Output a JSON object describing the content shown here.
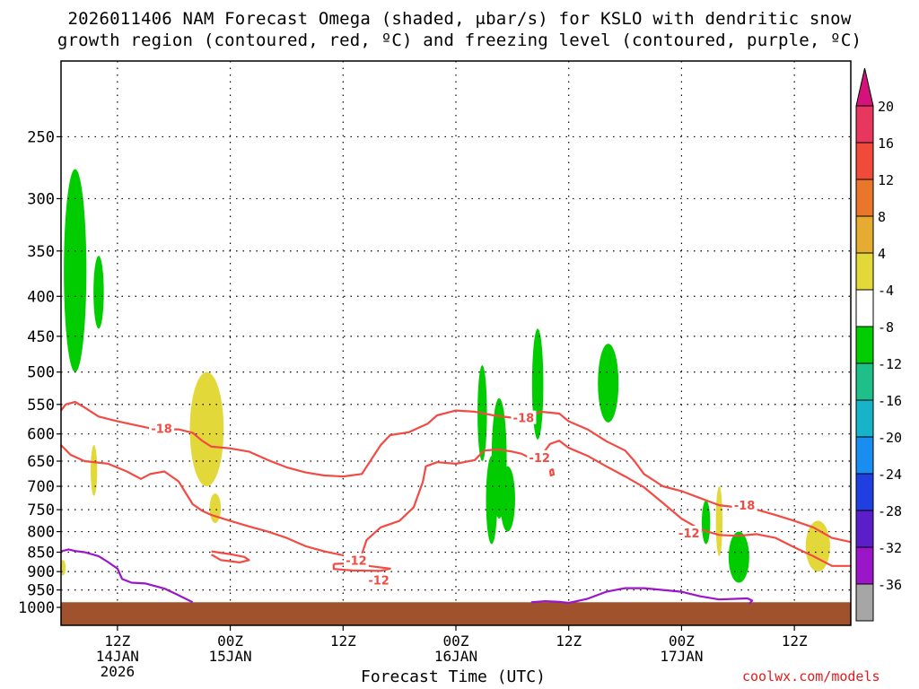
{
  "title_line1": "2026011406 NAM Forecast Omega (shaded, μbar/s) for KSLO with dendritic snow",
  "title_line2": "growth region (contoured, red, ºC) and freezing level (contoured, purple, ºC)",
  "credit": "coolwx.com/models",
  "colors": {
    "dgz_line": "#f24b43",
    "freezing_line": "#9b15c9",
    "terrain": "#a0522d",
    "omega_green": "#00cc00",
    "omega_yellow": "#e3d83a"
  },
  "chart_data": {
    "type": "heatmap",
    "title": "2026011406 NAM Forecast Omega (shaded, μbar/s) for KSLO with dendritic snow growth region (contoured, red, ºC) and freezing level (contoured, purple, ºC)",
    "xlabel": "Forecast Time (UTC)",
    "ylabel": "",
    "x_units": "hours since 2026011406",
    "xlim": [
      6,
      90
    ],
    "ylim_hpa": [
      1000,
      200
    ],
    "y_scale": "log-pressure",
    "grid": true,
    "y_ticks": [
      250,
      300,
      350,
      400,
      450,
      500,
      550,
      600,
      650,
      700,
      750,
      800,
      850,
      900,
      950,
      1000
    ],
    "x_ticks": [
      {
        "x": 12,
        "l1": "12Z",
        "l2": "14JAN",
        "l3": "2026"
      },
      {
        "x": 24,
        "l1": "00Z",
        "l2": "15JAN",
        "l3": ""
      },
      {
        "x": 36,
        "l1": "12Z",
        "l2": "",
        "l3": ""
      },
      {
        "x": 48,
        "l1": "00Z",
        "l2": "16JAN",
        "l3": ""
      },
      {
        "x": 60,
        "l1": "12Z",
        "l2": "",
        "l3": ""
      },
      {
        "x": 72,
        "l1": "00Z",
        "l2": "17JAN",
        "l3": ""
      },
      {
        "x": 84,
        "l1": "12Z",
        "l2": "",
        "l3": ""
      }
    ],
    "colorbar": {
      "levels": [
        "20",
        "16",
        "12",
        "8",
        "4",
        "-4",
        "-8",
        "-12",
        "-16",
        "-20",
        "-24",
        "-28",
        "-32",
        "-36"
      ],
      "colors": [
        "#e8375e",
        "#f04a3a",
        "#e9762a",
        "#e6ac32",
        "#e3d83a",
        "#ffffff",
        "#00cc00",
        "#1fbf8a",
        "#17b4c9",
        "#1a8df0",
        "#1f3fe0",
        "#5a1fc8",
        "#9b15c9",
        "#a6a6a6"
      ],
      "top_arrow": "#d4137a",
      "bottom_arrow": "#000000"
    },
    "contours": [
      {
        "name": "-18",
        "color": "#f24b43",
        "label_at": [
          [
            16.7,
            590
          ],
          [
            55.2,
            572
          ],
          [
            78.7,
            740
          ]
        ],
        "points": [
          [
            6,
            560
          ],
          [
            6.5,
            550
          ],
          [
            7.5,
            546
          ],
          [
            8.5,
            555
          ],
          [
            10,
            570
          ],
          [
            12,
            578
          ],
          [
            14,
            585
          ],
          [
            16,
            592
          ],
          [
            18.5,
            592
          ],
          [
            20,
            598
          ],
          [
            21,
            612
          ],
          [
            22,
            623
          ],
          [
            24,
            626
          ],
          [
            26,
            632
          ],
          [
            28,
            648
          ],
          [
            30,
            662
          ],
          [
            32,
            672
          ],
          [
            34,
            678
          ],
          [
            36,
            680
          ],
          [
            38,
            675
          ],
          [
            40,
            620
          ],
          [
            41,
            602
          ],
          [
            43,
            597
          ],
          [
            45,
            582
          ],
          [
            46,
            568
          ],
          [
            48,
            560
          ],
          [
            50,
            562
          ],
          [
            52,
            568
          ],
          [
            54,
            572
          ],
          [
            56,
            570
          ],
          [
            57,
            562
          ],
          [
            59,
            565
          ],
          [
            60,
            578
          ],
          [
            62,
            592
          ],
          [
            64,
            613
          ],
          [
            66,
            630
          ],
          [
            67,
            650
          ],
          [
            68,
            675
          ],
          [
            70,
            700
          ],
          [
            72,
            710
          ],
          [
            74,
            725
          ],
          [
            76,
            740
          ],
          [
            78,
            745
          ],
          [
            80,
            750
          ],
          [
            82,
            762
          ],
          [
            84,
            775
          ],
          [
            86,
            790
          ],
          [
            88,
            815
          ],
          [
            90,
            825
          ]
        ]
      },
      {
        "name": "-12",
        "color": "#f24b43",
        "label_at": [
          [
            37.4,
            871
          ],
          [
            56.9,
            643
          ],
          [
            72.8,
            803
          ],
          [
            39.8,
            923
          ]
        ],
        "points": [
          [
            6,
            620
          ],
          [
            7,
            638
          ],
          [
            8.5,
            650
          ],
          [
            11,
            655
          ],
          [
            13,
            670
          ],
          [
            14.5,
            685
          ],
          [
            15.5,
            675
          ],
          [
            17,
            670
          ],
          [
            18.5,
            690
          ],
          [
            20,
            738
          ],
          [
            21,
            752
          ],
          [
            22,
            762
          ],
          [
            24,
            775
          ],
          [
            26,
            788
          ],
          [
            28,
            800
          ],
          [
            30,
            815
          ],
          [
            32,
            835
          ],
          [
            34,
            848
          ],
          [
            36,
            858
          ],
          [
            37,
            866
          ],
          [
            38,
            855
          ],
          [
            38.5,
            820
          ],
          [
            40,
            790
          ],
          [
            42,
            775
          ],
          [
            43.5,
            745
          ],
          [
            44.5,
            690
          ],
          [
            44.8,
            660
          ],
          [
            46,
            652
          ],
          [
            48,
            655
          ],
          [
            50,
            648
          ],
          [
            51,
            630
          ],
          [
            52.5,
            628
          ],
          [
            54,
            632
          ],
          [
            55,
            636
          ],
          [
            56,
            645
          ],
          [
            57.5,
            630
          ],
          [
            58,
            618
          ],
          [
            59,
            612
          ],
          [
            60,
            625
          ],
          [
            62,
            640
          ],
          [
            64,
            660
          ],
          [
            66,
            680
          ],
          [
            68,
            702
          ],
          [
            70,
            735
          ],
          [
            72,
            770
          ],
          [
            74,
            795
          ],
          [
            76,
            808
          ],
          [
            78,
            810
          ],
          [
            80,
            806
          ],
          [
            82,
            815
          ],
          [
            84,
            838
          ],
          [
            86,
            860
          ],
          [
            88,
            885
          ],
          [
            90,
            885
          ]
        ]
      },
      {
        "name": "-12 b",
        "color": "#f24b43",
        "label_at": [],
        "points": [
          [
            22,
            848
          ],
          [
            24,
            855
          ],
          [
            25.5,
            862
          ],
          [
            26,
            870
          ],
          [
            25,
            876
          ],
          [
            23,
            870
          ],
          [
            22,
            856
          ]
        ]
      },
      {
        "name": "-12 c",
        "color": "#f24b43",
        "label_at": [],
        "points": [
          [
            35,
            880
          ],
          [
            37,
            878
          ],
          [
            39,
            886
          ],
          [
            41,
            892
          ],
          [
            40,
            898
          ],
          [
            37,
            897
          ],
          [
            35,
            893
          ],
          [
            35,
            880
          ]
        ]
      },
      {
        "name": "-12 d",
        "color": "#f24b43",
        "label_at": [],
        "points": [
          [
            58,
            668
          ],
          [
            58.3,
            666
          ],
          [
            58.4,
            676
          ],
          [
            58.1,
            678
          ],
          [
            58,
            668
          ]
        ]
      },
      {
        "name": "0",
        "color": "#9b15c9",
        "label_at": [],
        "points": [
          [
            6,
            848
          ],
          [
            6.8,
            843
          ],
          [
            7.5,
            847
          ],
          [
            8.5,
            850
          ],
          [
            10,
            860
          ],
          [
            11,
            875
          ],
          [
            12,
            892
          ],
          [
            12.5,
            920
          ],
          [
            13.5,
            930
          ],
          [
            15,
            932
          ],
          [
            17,
            946
          ],
          [
            18.5,
            965
          ],
          [
            20,
            985
          ]
        ]
      },
      {
        "name": "0 b",
        "color": "#9b15c9",
        "label_at": [],
        "points": [
          [
            56,
            985
          ],
          [
            57.5,
            982
          ],
          [
            59,
            984
          ],
          [
            60,
            987
          ],
          [
            62,
            975
          ],
          [
            64,
            955
          ],
          [
            66,
            945
          ],
          [
            68,
            945
          ],
          [
            70,
            950
          ],
          [
            72,
            955
          ],
          [
            74,
            968
          ],
          [
            76,
            977
          ],
          [
            78,
            975
          ],
          [
            79,
            974
          ],
          [
            79.5,
            980
          ],
          [
            79.2,
            990
          ]
        ]
      }
    ],
    "omega_blobs": [
      {
        "value_band": "-4 to -8",
        "color": "#00cc00",
        "center": [
          7.5,
          370
        ],
        "x_halfwidth": 1.2,
        "p_top": 275,
        "p_bottom": 500
      },
      {
        "value_band": "-4 to -8",
        "color": "#00cc00",
        "center": [
          10,
          390
        ],
        "x_halfwidth": 0.55,
        "p_top": 355,
        "p_bottom": 440
      },
      {
        "value_band": "-4 to -8",
        "color": "#00cc00",
        "center": [
          50.8,
          560
        ],
        "x_halfwidth": 0.5,
        "p_top": 490,
        "p_bottom": 650
      },
      {
        "value_band": "-4 to -8",
        "color": "#00cc00",
        "center": [
          52.6,
          645
        ],
        "x_halfwidth": 0.8,
        "p_top": 540,
        "p_bottom": 770
      },
      {
        "value_band": "-4 to -8",
        "color": "#00cc00",
        "center": [
          51.8,
          720
        ],
        "x_halfwidth": 0.6,
        "p_top": 640,
        "p_bottom": 830
      },
      {
        "value_band": "-4 to -8",
        "color": "#00cc00",
        "center": [
          53.5,
          720
        ],
        "x_halfwidth": 0.8,
        "p_top": 660,
        "p_bottom": 800
      },
      {
        "value_band": "-4 to -8",
        "color": "#00cc00",
        "center": [
          56.7,
          510
        ],
        "x_halfwidth": 0.6,
        "p_top": 440,
        "p_bottom": 610
      },
      {
        "value_band": "-4 to -8",
        "color": "#00cc00",
        "center": [
          64.2,
          530
        ],
        "x_halfwidth": 1.1,
        "p_top": 460,
        "p_bottom": 580
      },
      {
        "value_band": "-4 to -8",
        "color": "#00cc00",
        "center": [
          74.6,
          780
        ],
        "x_halfwidth": 0.45,
        "p_top": 730,
        "p_bottom": 830
      },
      {
        "value_band": "-4 to -8",
        "color": "#00cc00",
        "center": [
          78.1,
          860
        ],
        "x_halfwidth": 1.1,
        "p_top": 800,
        "p_bottom": 930
      },
      {
        "value_band": "4 to 8",
        "color": "#e3d83a",
        "center": [
          6.2,
          885
        ],
        "x_halfwidth": 0.3,
        "p_top": 870,
        "p_bottom": 910
      },
      {
        "value_band": "4 to 8",
        "color": "#e3d83a",
        "center": [
          9.5,
          670
        ],
        "x_halfwidth": 0.35,
        "p_top": 620,
        "p_bottom": 720
      },
      {
        "value_band": "4 to 8",
        "color": "#e3d83a",
        "center": [
          21.5,
          600
        ],
        "x_halfwidth": 1.8,
        "p_top": 500,
        "p_bottom": 700
      },
      {
        "value_band": "4 to 8",
        "color": "#e3d83a",
        "center": [
          22.4,
          740
        ],
        "x_halfwidth": 0.6,
        "p_top": 715,
        "p_bottom": 780
      },
      {
        "value_band": "4 to 8",
        "color": "#e3d83a",
        "center": [
          76,
          770
        ],
        "x_halfwidth": 0.35,
        "p_top": 700,
        "p_bottom": 860
      },
      {
        "value_band": "4 to 8",
        "color": "#e3d83a",
        "center": [
          86.5,
          840
        ],
        "x_halfwidth": 1.3,
        "p_top": 775,
        "p_bottom": 900
      }
    ],
    "terrain_pressure": 985
  }
}
